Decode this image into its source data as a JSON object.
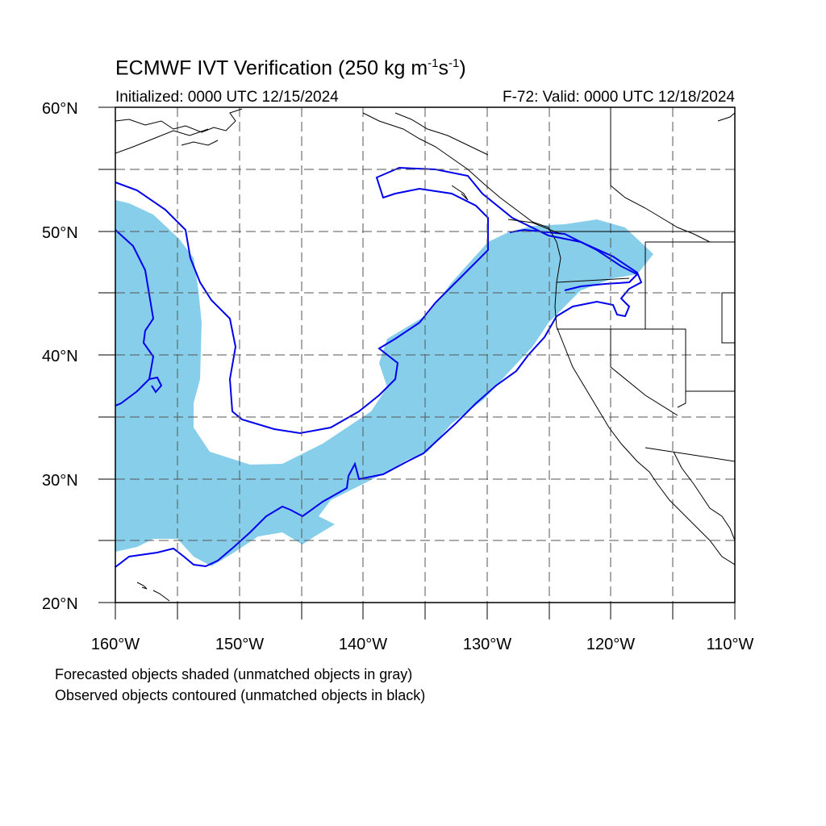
{
  "title": {
    "main": "ECMWF IVT Verification (250 kg m",
    "exp1": "-1",
    "mid": "s",
    "exp2": "-1",
    "close": ")"
  },
  "subtitle_left": "Initialized: 0000 UTC 12/15/2024",
  "subtitle_right": "F-72: Valid: 0000 UTC 12/18/2024",
  "lat_labels": [
    "60°N",
    "50°N",
    "40°N",
    "30°N",
    "20°N"
  ],
  "lon_labels": [
    "160°W",
    "150°W",
    "140°W",
    "130°W",
    "120°W",
    "110°W"
  ],
  "caption_1": "Forecasted objects shaded (unmatched objects in gray)",
  "caption_2": "Observed objects contoured (unmatched objects in black)",
  "colors": {
    "forecast_fill": "#87ceeb",
    "observed_contour": "#0000ee",
    "coastline": "#000000",
    "grid": "#555555"
  },
  "map": {
    "lat_range": [
      20,
      60
    ],
    "lon_range": [
      -160,
      -110
    ],
    "grid_dashed": true
  }
}
